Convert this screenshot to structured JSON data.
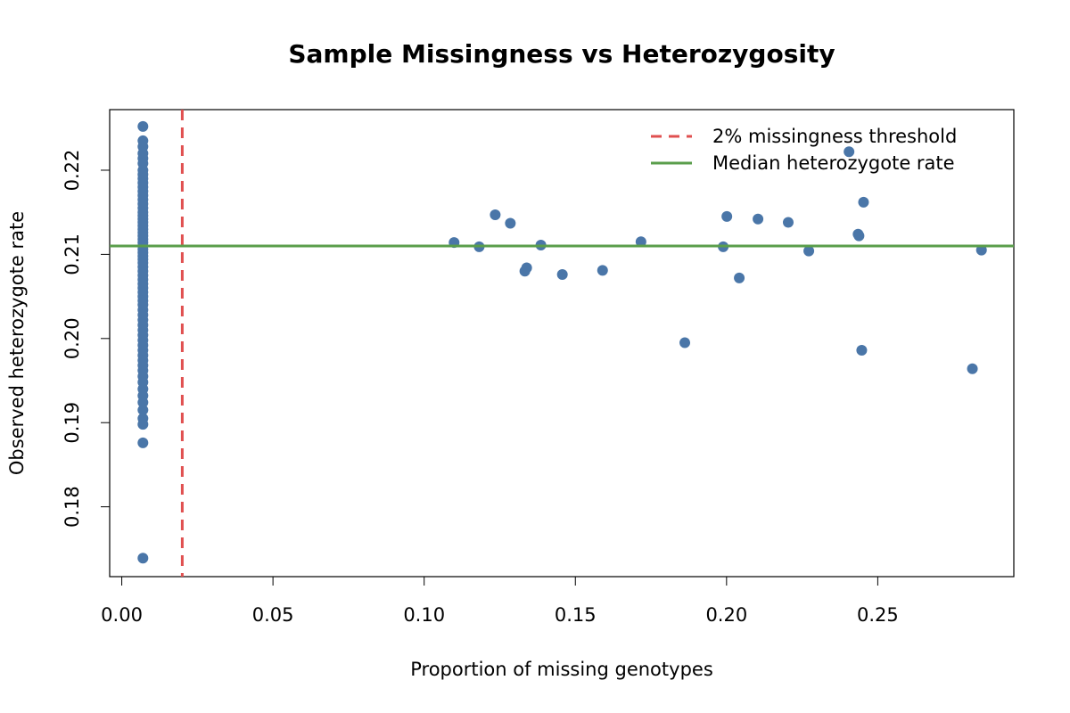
{
  "chart_data": {
    "type": "scatter",
    "title": "Sample Missingness vs Heterozygosity",
    "x_label": "Proportion of missing genotypes",
    "y_label": "Observed heterozygote rate",
    "x": [
      0.007,
      0.007,
      0.007,
      0.007,
      0.007,
      0.007,
      0.007,
      0.007,
      0.007,
      0.007,
      0.007,
      0.007,
      0.007,
      0.007,
      0.007,
      0.007,
      0.007,
      0.007,
      0.007,
      0.007,
      0.007,
      0.007,
      0.007,
      0.007,
      0.007,
      0.007,
      0.007,
      0.007,
      0.007,
      0.007,
      0.007,
      0.007,
      0.007,
      0.007,
      0.007,
      0.007,
      0.007,
      0.007,
      0.007,
      0.007,
      0.007,
      0.007,
      0.007,
      0.007,
      0.007,
      0.007,
      0.007,
      0.007,
      0.007,
      0.007,
      0.007,
      0.007,
      0.007,
      0.007,
      0.007,
      0.007,
      0.007,
      0.007,
      0.007,
      0.007,
      0.007,
      0.007,
      0.007,
      0.007,
      0.007,
      0.1099,
      0.1182,
      0.1235,
      0.1285,
      0.1333,
      0.1339,
      0.1386,
      0.1457,
      0.159,
      0.1717,
      0.1862,
      0.1989,
      0.2001,
      0.2042,
      0.2104,
      0.2204,
      0.2272,
      0.2405,
      0.2435,
      0.2438,
      0.2447,
      0.2453,
      0.2813,
      0.2843
    ],
    "series": [
      {
        "color": "#4a76a8",
        "values": [
          0.2252,
          0.2235,
          0.2228,
          0.222,
          0.2214,
          0.2208,
          0.22,
          0.2195,
          0.219,
          0.2185,
          0.218,
          0.2175,
          0.217,
          0.2165,
          0.216,
          0.2155,
          0.215,
          0.2146,
          0.2142,
          0.2138,
          0.2134,
          0.213,
          0.2126,
          0.2122,
          0.2118,
          0.2114,
          0.211,
          0.2106,
          0.2102,
          0.2098,
          0.2094,
          0.209,
          0.2085,
          0.208,
          0.2075,
          0.207,
          0.2065,
          0.206,
          0.2055,
          0.205,
          0.2045,
          0.204,
          0.2034,
          0.2028,
          0.2022,
          0.2016,
          0.201,
          0.2004,
          0.1998,
          0.1992,
          0.1986,
          0.198,
          0.1974,
          0.1968,
          0.1962,
          0.1955,
          0.1948,
          0.194,
          0.1932,
          0.1924,
          0.1915,
          0.1905,
          0.1898,
          0.1876,
          0.1739,
          0.2114,
          0.2109,
          0.2147,
          0.2137,
          0.208,
          0.2084,
          0.2111,
          0.2076,
          0.2081,
          0.2115,
          0.1995,
          0.2109,
          0.2145,
          0.2072,
          0.2142,
          0.2138,
          0.2104,
          0.2222,
          0.2124,
          0.2122,
          0.1986,
          0.2162,
          0.1964,
          0.2105
        ]
      }
    ],
    "threshold": {
      "label": "2% missingness threshold",
      "x": 0.02,
      "color": "#e05050"
    },
    "median": {
      "label": "Median heterozygote rate",
      "y": 0.211,
      "color": "#5a9e4b"
    },
    "xlim": [
      -0.004,
      0.295
    ],
    "ylim": [
      0.1717,
      0.2272
    ],
    "xticks": [
      {
        "value": 0,
        "label": "0.00"
      },
      0.05,
      {
        "value": 0.1,
        "label": "0.10"
      },
      0.15,
      {
        "value": 0.2,
        "label": "0.20"
      },
      0.25
    ],
    "yticks": [
      0.18,
      0.19,
      {
        "value": 0.2,
        "label": "0.20"
      },
      0.21,
      0.22
    ],
    "legend": "top-right"
  }
}
